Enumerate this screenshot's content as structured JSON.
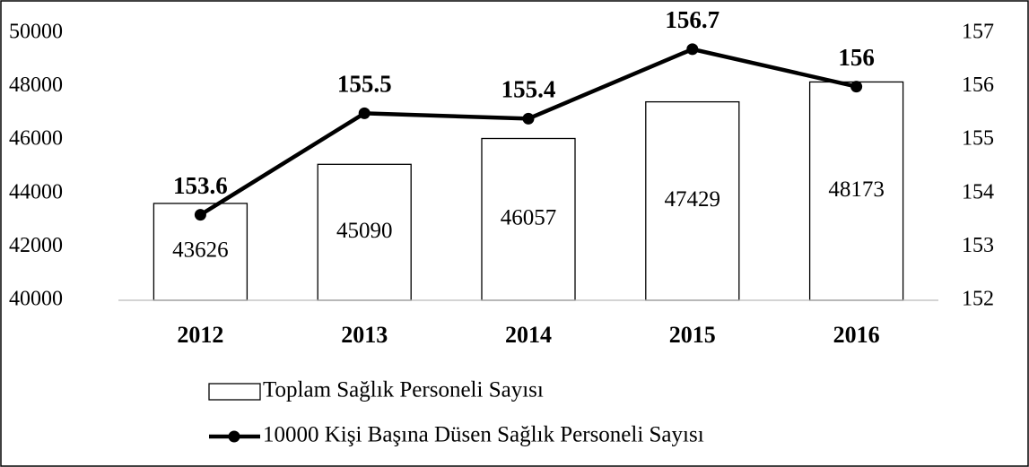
{
  "chart_data": {
    "type": "bar",
    "categories": [
      "2012",
      "2013",
      "2014",
      "2015",
      "2016"
    ],
    "series": [
      {
        "name": "Toplam Sağlık Personeli Sayısı",
        "type": "bar",
        "color": "#ffffff",
        "values": [
          43626,
          45090,
          46057,
          47429,
          48173
        ]
      },
      {
        "name": "10000 Kişi Başına Düsen Sağlık Personeli Sayısı",
        "type": "line",
        "axis": "y2",
        "color": "#000000",
        "values": [
          153.6,
          155.5,
          155.4,
          156.7,
          156
        ]
      }
    ],
    "ylim": [
      40000,
      50000
    ],
    "yticks": [
      40000,
      42000,
      44000,
      46000,
      48000,
      50000
    ],
    "y2lim": [
      152,
      157
    ],
    "y2ticks": [
      152,
      153,
      154,
      155,
      156,
      157
    ],
    "grid": false,
    "legend": "bottom"
  }
}
